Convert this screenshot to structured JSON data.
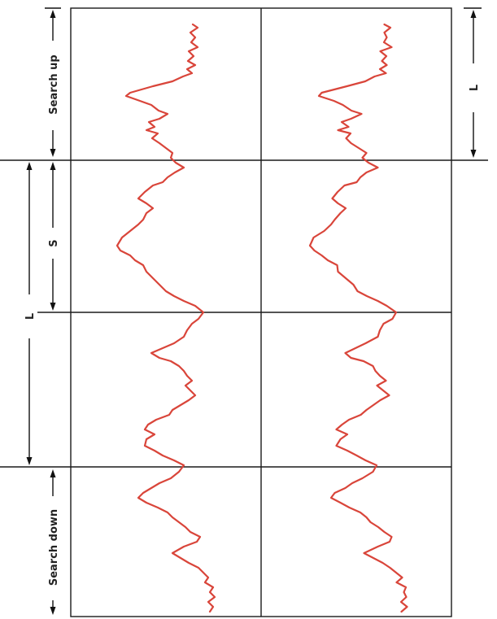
{
  "labels": {
    "search_up": "Search up",
    "search_down": "Search down",
    "s": "S",
    "l_left": "L",
    "l_right": "L"
  },
  "colors": {
    "trace": "#d9453a",
    "grid": "#1a1a1a",
    "background": "#ffffff"
  },
  "grid": {
    "rows": 4,
    "columns": 2
  }
}
